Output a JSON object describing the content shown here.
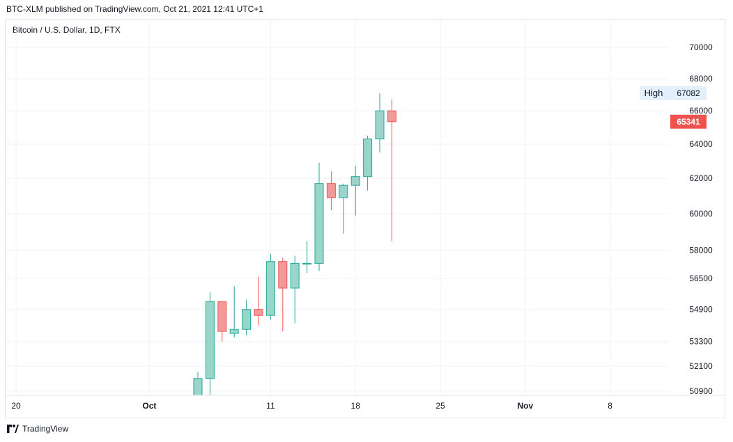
{
  "header": {
    "published_text": "BTC-XLM published on TradingView.com, Oct 21, 2021 12:41 UTC+1"
  },
  "legend": {
    "title": "Bitcoin / U.S. Dollar, 1D, FTX"
  },
  "footer": {
    "brand": "TradingView"
  },
  "colors": {
    "up_fill": "#99d6ca",
    "up_border": "#26a69a",
    "down_fill": "#f29a9a",
    "down_border": "#ef5350",
    "grid": "#f0f3fa",
    "last_price_bg": "#ef5350",
    "high_label_bg": "#e3effd"
  },
  "chart_data": {
    "type": "candlestick",
    "symbol": "Bitcoin / U.S. Dollar",
    "interval": "1D",
    "exchange": "FTX",
    "x_tick_labels": [
      {
        "date": "2021-09-20",
        "label": "20"
      },
      {
        "date": "2021-10-01",
        "label": "Oct"
      },
      {
        "date": "2021-10-11",
        "label": "11"
      },
      {
        "date": "2021-10-18",
        "label": "18"
      },
      {
        "date": "2021-10-25",
        "label": "25"
      },
      {
        "date": "2021-11-01",
        "label": "Nov"
      },
      {
        "date": "2021-11-08",
        "label": "8"
      }
    ],
    "y_tick_labels": [
      "70000",
      "68000",
      "66000",
      "64000",
      "62000",
      "60000",
      "58000",
      "56500",
      "54900",
      "53300",
      "52100",
      "50900"
    ],
    "y_ticks": [
      70000,
      68000,
      66000,
      64000,
      62000,
      60000,
      58000,
      56500,
      54900,
      53300,
      52100,
      50900
    ],
    "y_scale": "log",
    "x_range": [
      "2021-09-20",
      "2021-11-11"
    ],
    "y_range": [
      50800,
      71000
    ],
    "grid": true,
    "candles": [
      {
        "date": "2021-10-05",
        "open": 49700,
        "high": 51800,
        "low": 49100,
        "close": 51500
      },
      {
        "date": "2021-10-06",
        "open": 51500,
        "high": 55800,
        "low": 50500,
        "close": 55300
      },
      {
        "date": "2021-10-07",
        "open": 55300,
        "high": 55300,
        "low": 53300,
        "close": 53800
      },
      {
        "date": "2021-10-08",
        "open": 53700,
        "high": 56100,
        "low": 53500,
        "close": 53900
      },
      {
        "date": "2021-10-09",
        "open": 53900,
        "high": 55400,
        "low": 53600,
        "close": 54900
      },
      {
        "date": "2021-10-10",
        "open": 54900,
        "high": 56600,
        "low": 54100,
        "close": 54600
      },
      {
        "date": "2021-10-11",
        "open": 54600,
        "high": 57800,
        "low": 54400,
        "close": 57400
      },
      {
        "date": "2021-10-12",
        "open": 57400,
        "high": 57600,
        "low": 53800,
        "close": 56000
      },
      {
        "date": "2021-10-13",
        "open": 56000,
        "high": 57700,
        "low": 54200,
        "close": 57300
      },
      {
        "date": "2021-10-14",
        "open": 57300,
        "high": 58500,
        "low": 56800,
        "close": 57300
      },
      {
        "date": "2021-10-15",
        "open": 57300,
        "high": 62900,
        "low": 56900,
        "close": 61700
      },
      {
        "date": "2021-10-16",
        "open": 61700,
        "high": 62400,
        "low": 60200,
        "close": 60900
      },
      {
        "date": "2021-10-17",
        "open": 60900,
        "high": 61700,
        "low": 58900,
        "close": 61600
      },
      {
        "date": "2021-10-18",
        "open": 61600,
        "high": 62700,
        "low": 59900,
        "close": 62100
      },
      {
        "date": "2021-10-19",
        "open": 62100,
        "high": 64500,
        "low": 61300,
        "close": 64300
      },
      {
        "date": "2021-10-20",
        "open": 64300,
        "high": 67082,
        "low": 63500,
        "close": 66000
      },
      {
        "date": "2021-10-21",
        "open": 66000,
        "high": 66700,
        "low": 58500,
        "close": 65341
      }
    ],
    "last_price": "65341",
    "high_label": "High",
    "high_value": "67082"
  }
}
